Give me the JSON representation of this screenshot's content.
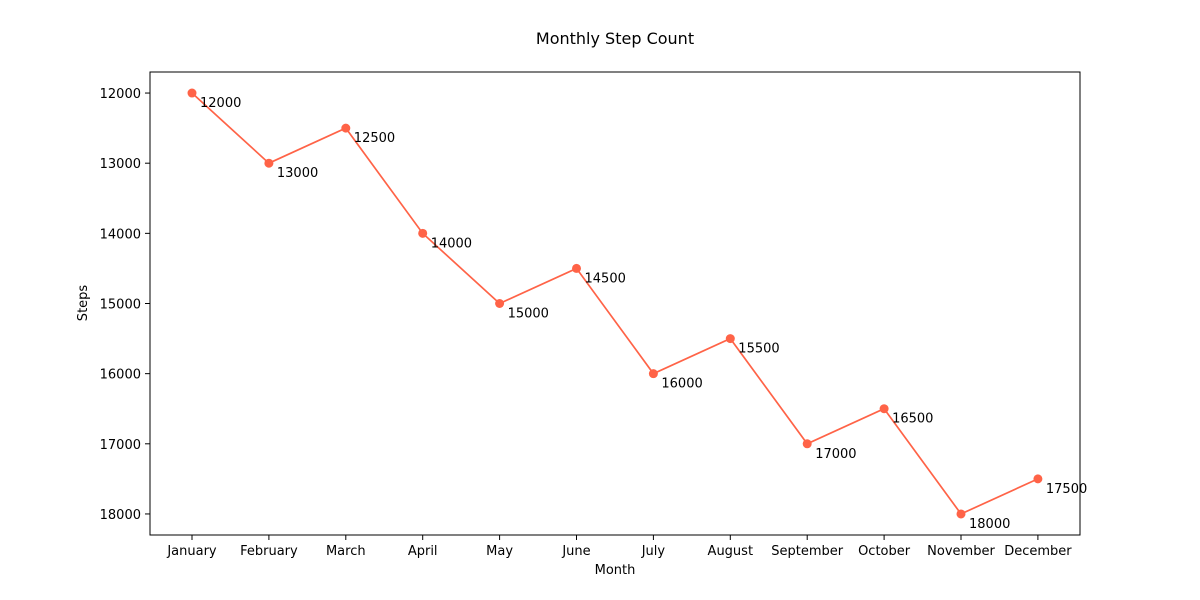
{
  "chart_data": {
    "type": "line",
    "title": "Monthly Step Count",
    "xlabel": "Month",
    "ylabel": "Steps",
    "categories": [
      "January",
      "February",
      "March",
      "April",
      "May",
      "June",
      "July",
      "August",
      "September",
      "October",
      "November",
      "December"
    ],
    "series": [
      {
        "values": [
          12000,
          13000,
          12500,
          14000,
          15000,
          14500,
          16000,
          15500,
          17000,
          16500,
          18000,
          17500
        ],
        "color": "#ff6347",
        "marker": "circle"
      }
    ],
    "data_labels": [
      "12000",
      "13000",
      "12500",
      "14000",
      "15000",
      "14500",
      "16000",
      "15500",
      "17000",
      "16500",
      "18000",
      "17500"
    ],
    "yticks": [
      12000,
      13000,
      14000,
      15000,
      16000,
      17000,
      18000
    ],
    "ylim": [
      18300,
      11700
    ],
    "y_inverted": true,
    "grid": false,
    "legend": "none"
  }
}
